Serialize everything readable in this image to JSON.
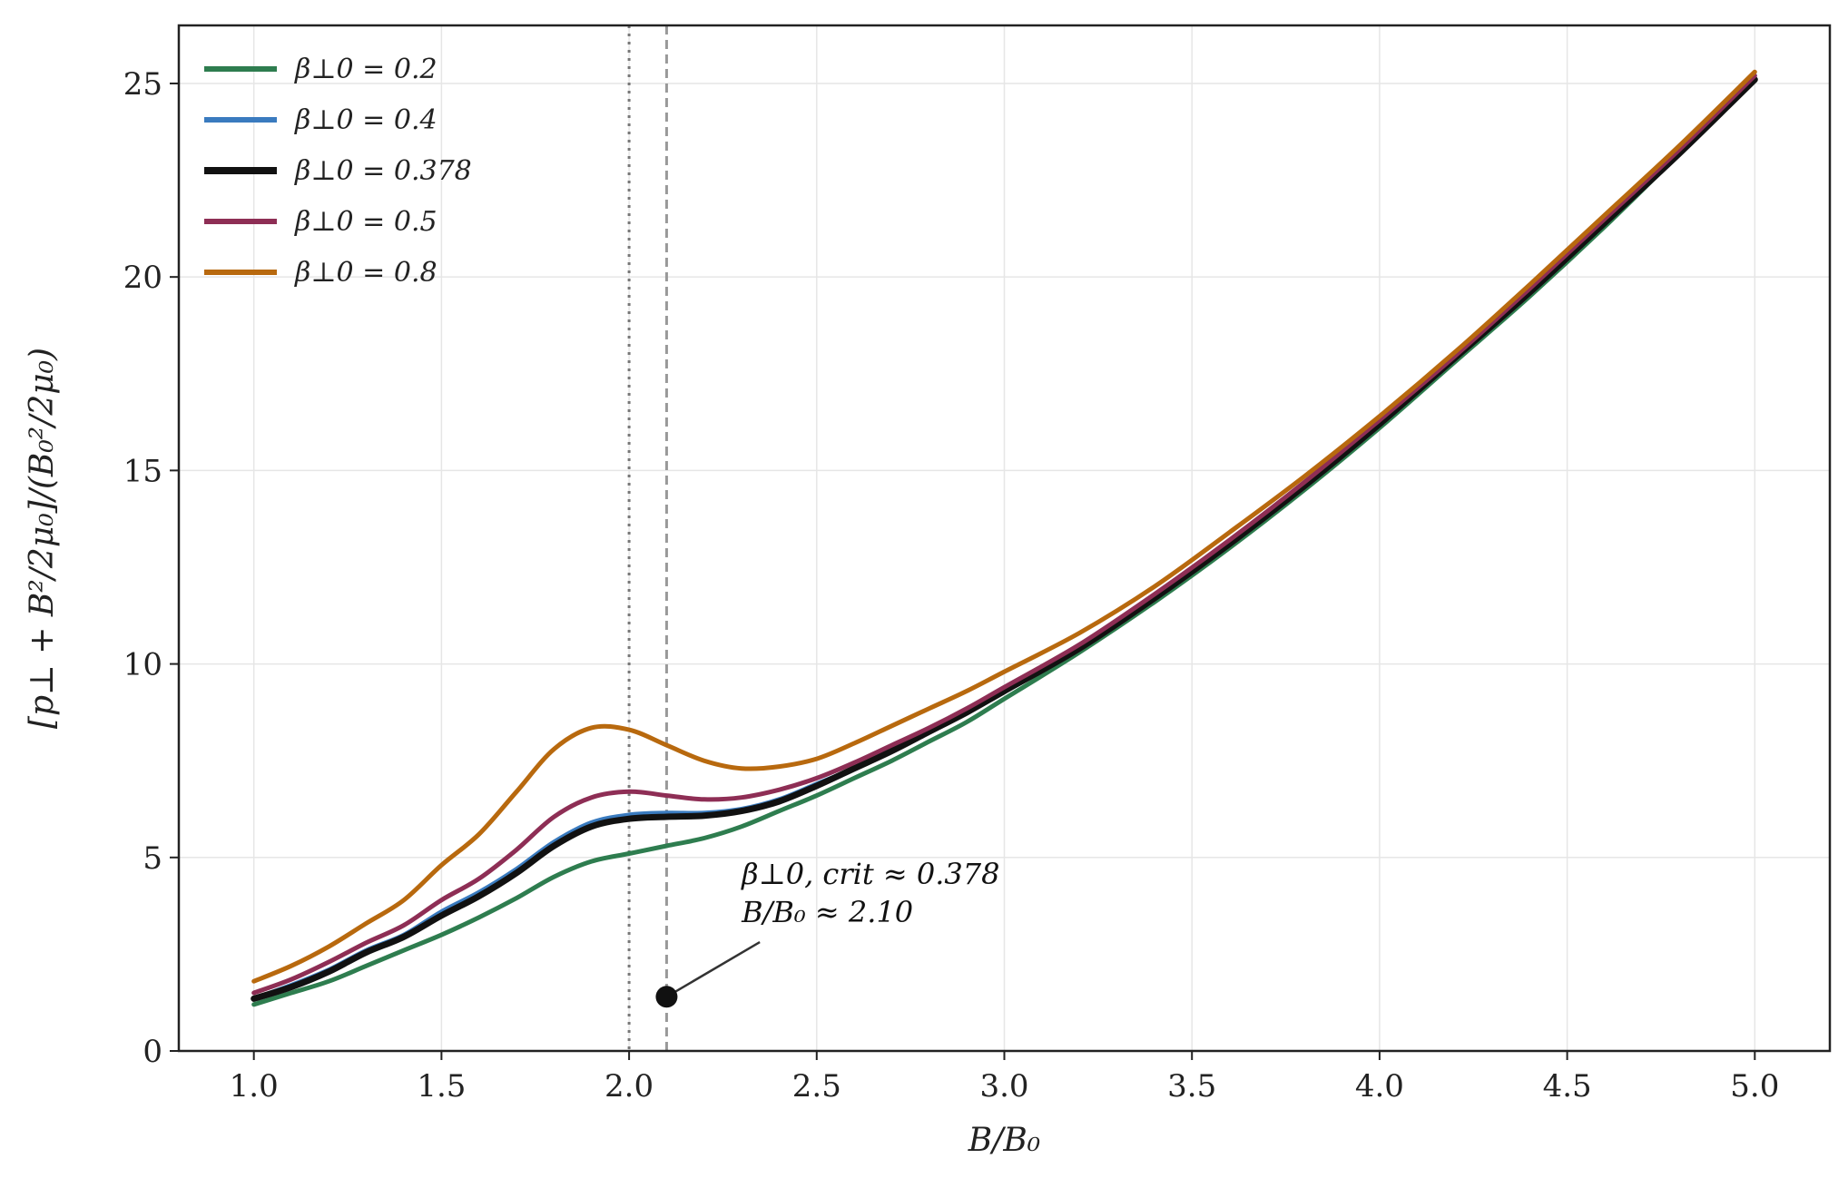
{
  "chart_data": {
    "type": "line",
    "xlabel": "B/B₀",
    "ylabel": "[p⊥ + B²/2μ₀]/(B₀²/2μ₀)",
    "xlim": [
      0.8,
      5.2
    ],
    "ylim": [
      0,
      26.5
    ],
    "xticks": [
      "1.0",
      "1.5",
      "2.0",
      "2.5",
      "3.0",
      "3.5",
      "4.0",
      "4.5",
      "5.0"
    ],
    "yticks": [
      "0",
      "5",
      "10",
      "15",
      "20",
      "25"
    ],
    "grid": true,
    "legend_position": "upper-left",
    "x": [
      1.0,
      1.1,
      1.2,
      1.3,
      1.4,
      1.5,
      1.6,
      1.7,
      1.8,
      1.9,
      2.0,
      2.1,
      2.2,
      2.3,
      2.4,
      2.5,
      2.6,
      2.7,
      2.8,
      2.9,
      3.0,
      3.2,
      3.4,
      3.6,
      3.8,
      4.0,
      4.2,
      4.4,
      4.6,
      4.8,
      5.0
    ],
    "series": [
      {
        "name": "β⊥0 = 0.2",
        "color": "#2e7d4f",
        "values": [
          1.2,
          1.5,
          1.8,
          2.2,
          2.6,
          3.0,
          3.45,
          3.95,
          4.5,
          4.9,
          5.1,
          5.3,
          5.5,
          5.8,
          6.2,
          6.6,
          7.05,
          7.5,
          8.0,
          8.5,
          9.1,
          10.3,
          11.6,
          13.0,
          14.5,
          16.1,
          17.8,
          19.5,
          21.3,
          23.2,
          25.1
        ]
      },
      {
        "name": "β⊥0 = 0.4",
        "color": "#3a7bbf",
        "values": [
          1.35,
          1.7,
          2.1,
          2.6,
          3.0,
          3.6,
          4.1,
          4.7,
          5.4,
          5.9,
          6.1,
          6.15,
          6.15,
          6.25,
          6.5,
          6.9,
          7.3,
          7.8,
          8.3,
          8.8,
          9.3,
          10.4,
          11.7,
          13.1,
          14.6,
          16.2,
          17.9,
          19.6,
          21.4,
          23.3,
          25.2
        ]
      },
      {
        "name": "β⊥0 = 0.378",
        "color": "#111111",
        "values": [
          1.35,
          1.65,
          2.05,
          2.55,
          2.95,
          3.5,
          4.0,
          4.6,
          5.3,
          5.8,
          6.0,
          6.05,
          6.08,
          6.2,
          6.45,
          6.85,
          7.3,
          7.75,
          8.25,
          8.75,
          9.3,
          10.4,
          11.7,
          13.1,
          14.6,
          16.2,
          17.9,
          19.6,
          21.4,
          23.2,
          25.1
        ]
      },
      {
        "name": "β⊥0 = 0.5",
        "color": "#8e2e55",
        "values": [
          1.5,
          1.85,
          2.3,
          2.8,
          3.25,
          3.9,
          4.45,
          5.2,
          6.05,
          6.55,
          6.7,
          6.6,
          6.5,
          6.55,
          6.75,
          7.05,
          7.45,
          7.9,
          8.35,
          8.85,
          9.4,
          10.5,
          11.8,
          13.2,
          14.7,
          16.3,
          17.95,
          19.7,
          21.5,
          23.3,
          25.2
        ]
      },
      {
        "name": "β⊥0 = 0.8",
        "color": "#b8690e",
        "values": [
          1.8,
          2.2,
          2.7,
          3.3,
          3.9,
          4.8,
          5.6,
          6.7,
          7.8,
          8.35,
          8.3,
          7.9,
          7.5,
          7.3,
          7.35,
          7.55,
          7.95,
          8.4,
          8.85,
          9.3,
          9.8,
          10.8,
          12.0,
          13.4,
          14.85,
          16.4,
          18.05,
          19.8,
          21.6,
          23.4,
          25.3
        ]
      }
    ],
    "vlines": [
      {
        "x": 2.0,
        "style": "dotted",
        "color": "#777777"
      },
      {
        "x": 2.1,
        "style": "dashed",
        "color": "#999999"
      }
    ],
    "annotation": {
      "point": {
        "x": 2.1,
        "y": 1.4
      },
      "text_x": 2.3,
      "text_y": 3.0,
      "line1": "β⊥0, crit ≈ 0.378",
      "line2": "B/B₀ ≈ 2.10"
    }
  }
}
